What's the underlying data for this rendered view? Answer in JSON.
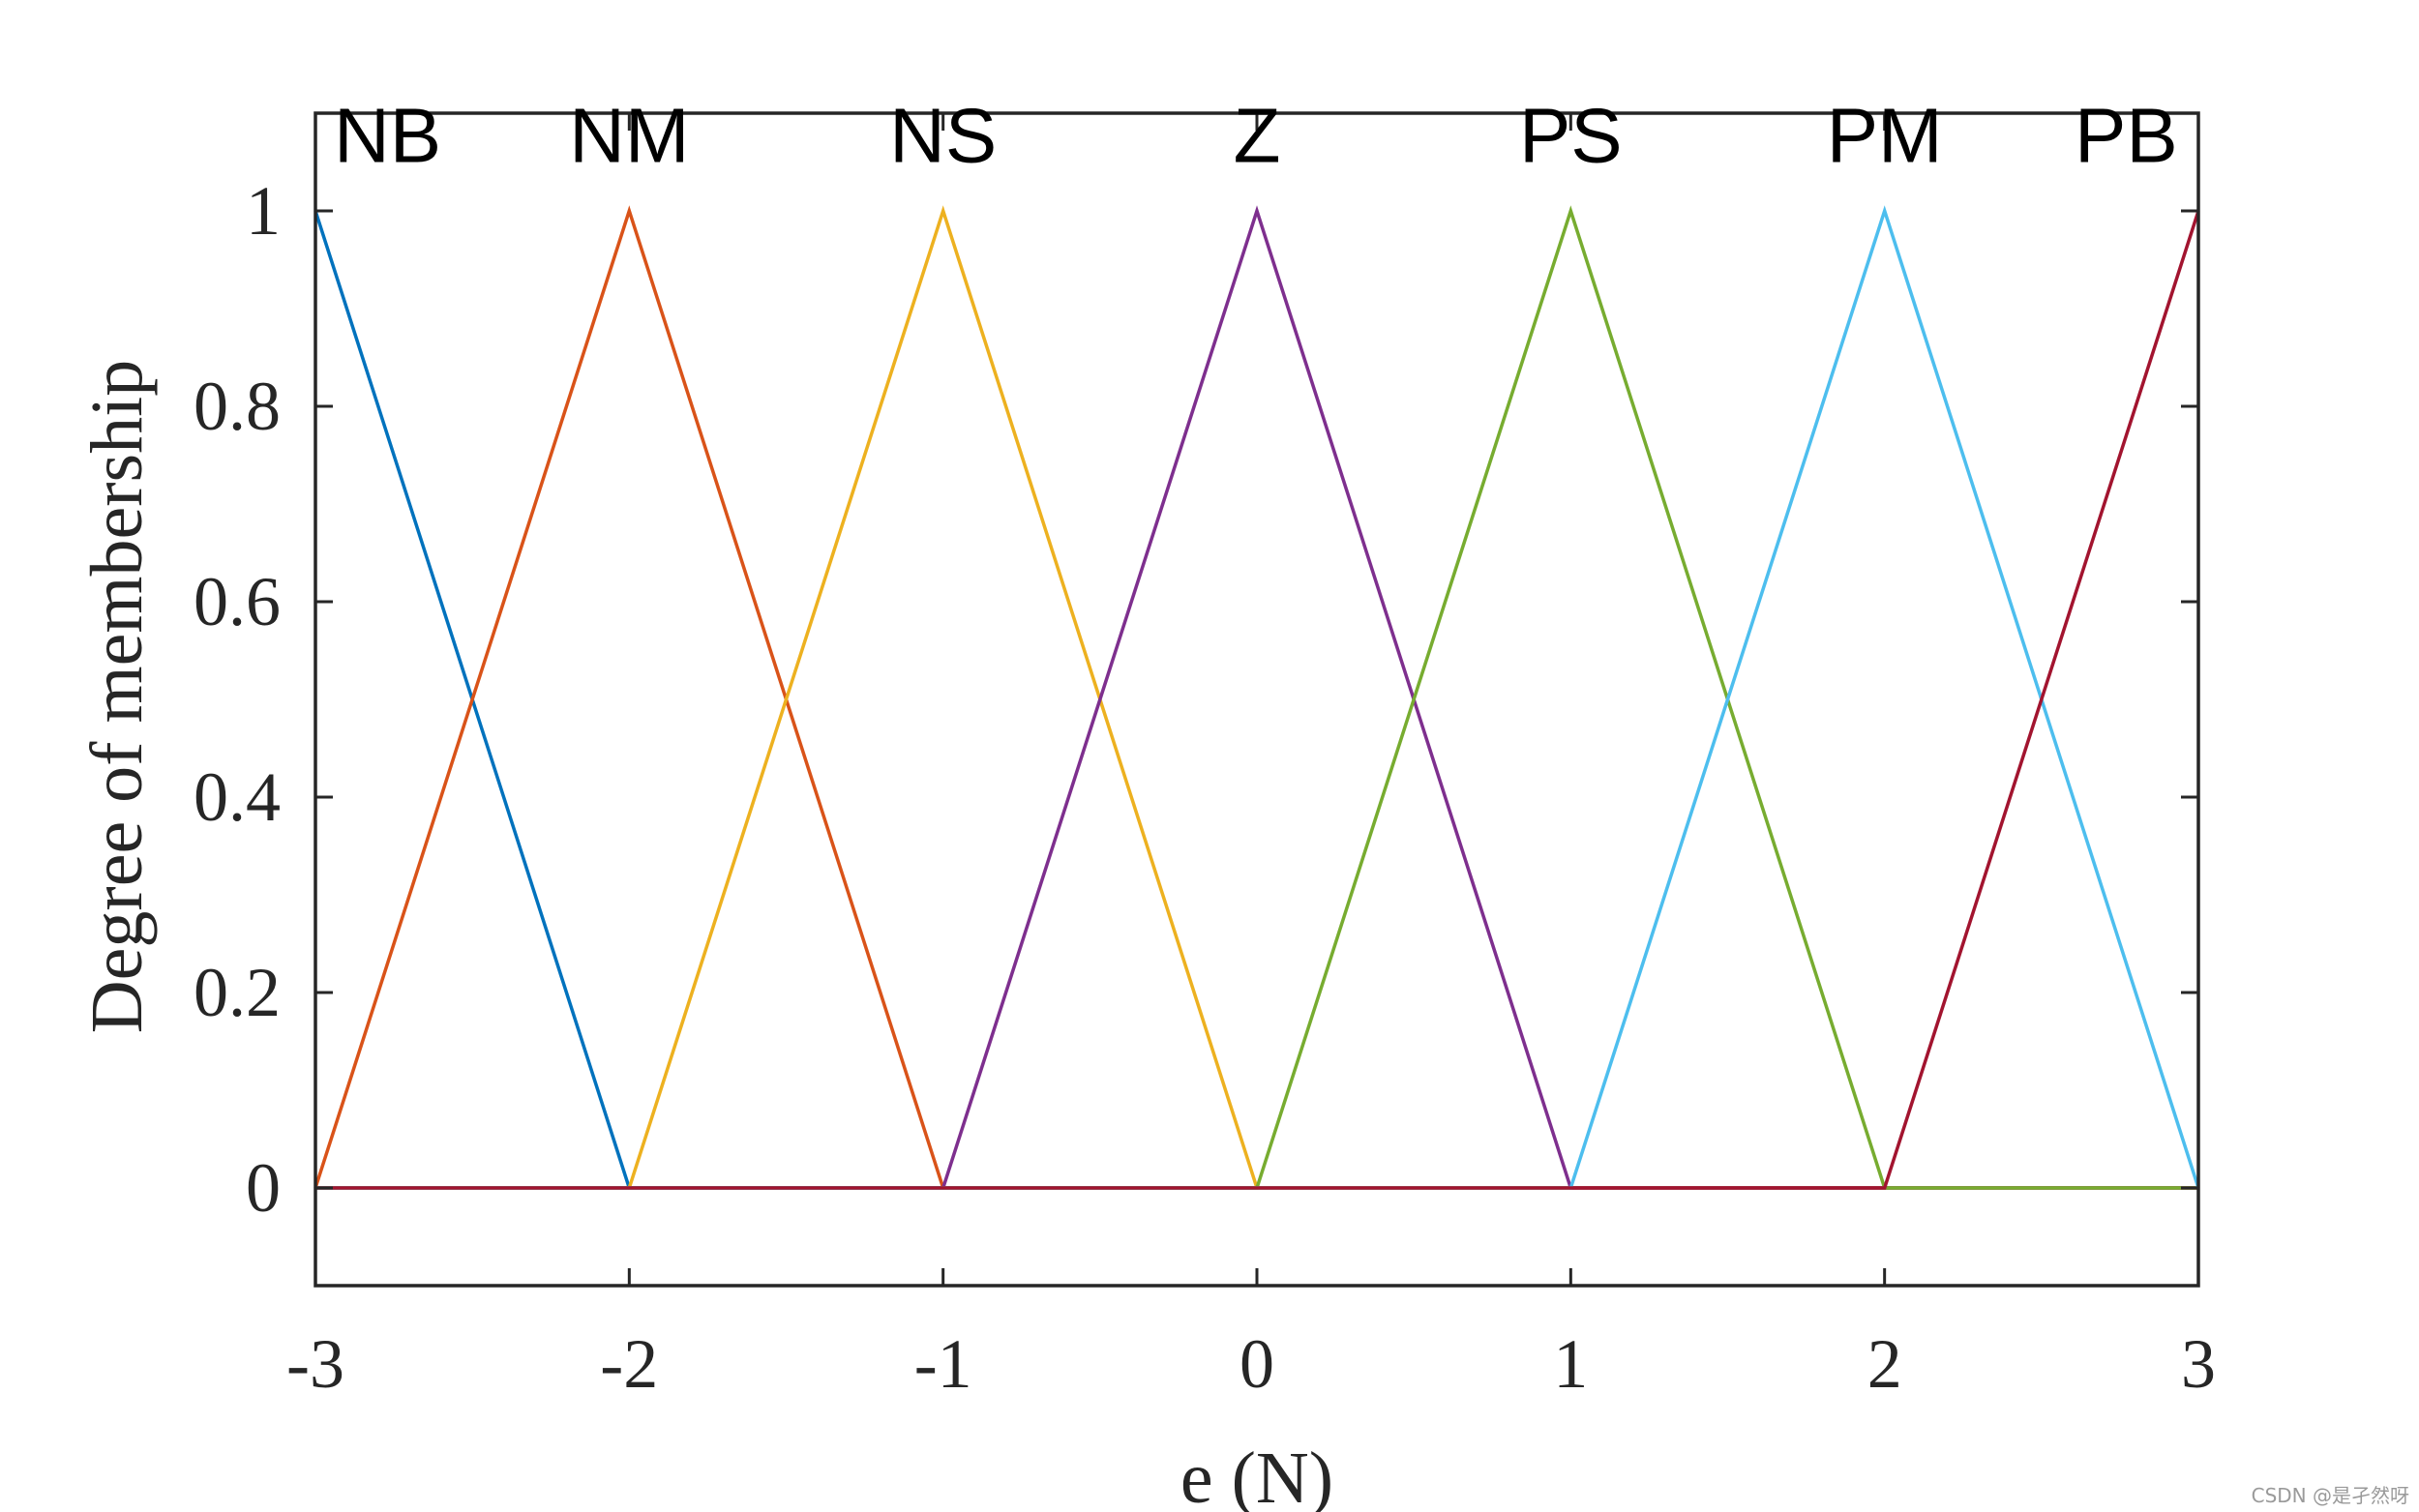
{
  "chart_data": {
    "type": "line",
    "title": "",
    "xlabel": "e (N)",
    "ylabel": "Degree of membership",
    "xlim": [
      -3,
      3
    ],
    "ylim": [
      -0.1,
      1.1
    ],
    "xticks": [
      -3,
      -2,
      -1,
      0,
      1,
      2,
      3
    ],
    "xtick_labels": [
      "-3",
      "-2",
      "-1",
      "0",
      "1",
      "2",
      "3"
    ],
    "yticks": [
      0,
      0.2,
      0.4,
      0.6,
      0.8,
      1
    ],
    "ytick_labels": [
      "0",
      "0.2",
      "0.4",
      "0.6",
      "0.8",
      "1"
    ],
    "grid": false,
    "legend": "none",
    "series": [
      {
        "label": "NB",
        "label_x": -2.77,
        "color": "#0072BD",
        "x": [
          -3,
          -3,
          -2,
          3
        ],
        "y": [
          1,
          1,
          0,
          0
        ]
      },
      {
        "label": "NM",
        "label_x": -2.0,
        "color": "#D95319",
        "x": [
          -3,
          -2,
          -1,
          3
        ],
        "y": [
          0,
          1,
          0,
          0
        ]
      },
      {
        "label": "NS",
        "label_x": -1.0,
        "color": "#EDB120",
        "x": [
          -3,
          -2,
          -1,
          0,
          3
        ],
        "y": [
          0,
          0,
          1,
          0,
          0
        ]
      },
      {
        "label": "Z",
        "label_x": 0.0,
        "color": "#7E2F8E",
        "x": [
          -3,
          -1,
          0,
          1,
          3
        ],
        "y": [
          0,
          0,
          1,
          0,
          0
        ]
      },
      {
        "label": "PS",
        "label_x": 1.0,
        "color": "#77AC30",
        "x": [
          -3,
          0,
          1,
          2,
          3
        ],
        "y": [
          0,
          0,
          1,
          0,
          0
        ]
      },
      {
        "label": "PM",
        "label_x": 2.0,
        "color": "#4DBEEE",
        "x": [
          -3,
          1,
          2,
          3
        ],
        "y": [
          0,
          0,
          1,
          0
        ]
      },
      {
        "label": "PB",
        "label_x": 2.77,
        "color": "#A2142F",
        "x": [
          -3,
          2,
          3
        ],
        "y": [
          0,
          0,
          1
        ]
      }
    ]
  },
  "watermark": "CSDN @是孑然呀"
}
